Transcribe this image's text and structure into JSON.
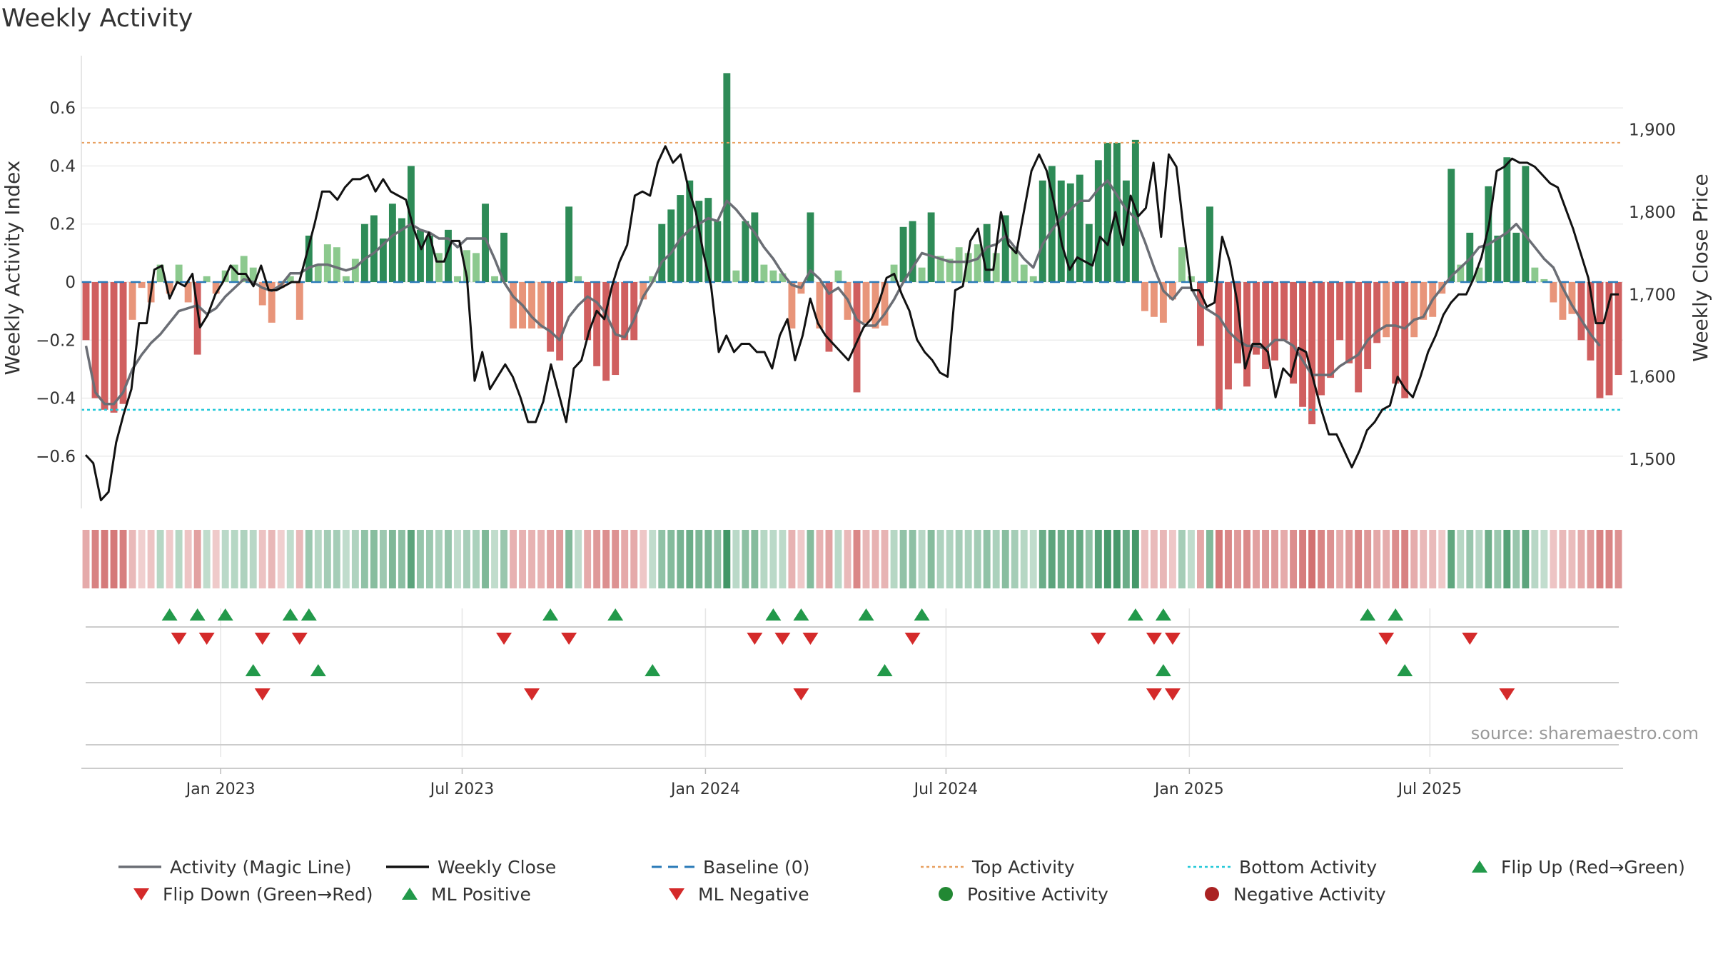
{
  "chart_data": {
    "type": "bar+line",
    "title": "Weekly Activity",
    "ylabel_left": "Weekly Activity Index",
    "ylabel_right": "Weekly Close Price",
    "ylim_left": [
      -0.78,
      0.78
    ],
    "ylim_right": [
      1440,
      1990
    ],
    "yticks_left": [
      -0.6,
      -0.4,
      -0.2,
      0,
      0.2,
      0.4,
      0.6
    ],
    "yticks_left_labels": [
      "−0.6",
      "−0.4",
      "−0.2",
      "0",
      "0.2",
      "0.4",
      "0.6"
    ],
    "yticks_right": [
      1500,
      1600,
      1700,
      1800,
      1900
    ],
    "yticks_right_labels": [
      "1,500",
      "1,600",
      "1,700",
      "1,800",
      "1,900"
    ],
    "x_start": "2022-09-26",
    "x_ticks": [
      {
        "label": "Jan 2023",
        "week": 14.5
      },
      {
        "label": "Jul 2023",
        "week": 40.5
      },
      {
        "label": "Jan 2024",
        "week": 66.7
      },
      {
        "label": "Jul 2024",
        "week": 92.6
      },
      {
        "label": "Jan 2025",
        "week": 118.8
      },
      {
        "label": "Jul 2025",
        "week": 144.7
      }
    ],
    "top_activity": 0.48,
    "bottom_activity": -0.44,
    "baseline": 0,
    "activity": [
      -0.2,
      -0.4,
      -0.44,
      -0.45,
      -0.42,
      -0.13,
      -0.02,
      -0.07,
      0.06,
      -0.04,
      0.06,
      -0.07,
      -0.25,
      0.02,
      -0.04,
      0.04,
      0.06,
      0.09,
      0.05,
      -0.08,
      -0.14,
      -0.02,
      0.02,
      -0.13,
      0.16,
      0.06,
      0.13,
      0.12,
      0.02,
      0.08,
      0.2,
      0.23,
      0.15,
      0.27,
      0.22,
      0.4,
      0.18,
      0.16,
      0.1,
      0.18,
      0.02,
      0.11,
      0.1,
      0.27,
      0.02,
      0.17,
      -0.16,
      -0.16,
      -0.16,
      -0.16,
      -0.24,
      -0.27,
      0.26,
      0.02,
      -0.2,
      -0.29,
      -0.34,
      -0.32,
      -0.2,
      -0.2,
      -0.06,
      0.02,
      0.2,
      0.25,
      0.3,
      0.35,
      0.28,
      0.29,
      0.21,
      0.72,
      0.04,
      0.21,
      0.24,
      0.06,
      0.04,
      0.03,
      -0.16,
      -0.04,
      0.24,
      -0.16,
      -0.24,
      0.04,
      -0.13,
      -0.38,
      -0.14,
      -0.16,
      -0.15,
      0.06,
      0.19,
      0.21,
      0.05,
      0.24,
      0.09,
      0.08,
      0.12,
      0.1,
      0.13,
      0.2,
      0.1,
      0.23,
      0.12,
      0.06,
      0.02,
      0.35,
      0.4,
      0.35,
      0.34,
      0.37,
      0.2,
      0.42,
      0.48,
      0.48,
      0.35,
      0.49,
      -0.1,
      -0.12,
      -0.14,
      -0.06,
      0.12,
      0.02,
      -0.22,
      0.26,
      -0.44,
      -0.37,
      -0.28,
      -0.36,
      -0.25,
      -0.3,
      -0.27,
      -0.2,
      -0.35,
      -0.43,
      -0.49,
      -0.39,
      -0.33,
      -0.2,
      -0.28,
      -0.38,
      -0.3,
      -0.21,
      -0.19,
      -0.35,
      -0.4,
      -0.19,
      -0.13,
      -0.12,
      -0.04,
      0.39,
      0.06,
      0.17,
      0.05,
      0.33,
      0.16,
      0.43,
      0.17,
      0.4,
      0.05,
      0.01,
      -0.07,
      -0.13,
      -0.11,
      -0.2,
      -0.27,
      -0.4,
      -0.39,
      -0.32
    ],
    "magic_line": [
      -0.22,
      -0.38,
      -0.42,
      -0.42,
      -0.38,
      -0.3,
      -0.25,
      -0.21,
      -0.18,
      -0.14,
      -0.1,
      -0.09,
      -0.08,
      -0.11,
      -0.09,
      -0.05,
      -0.02,
      0.01,
      0.0,
      -0.02,
      -0.03,
      -0.01,
      0.03,
      0.03,
      0.05,
      0.06,
      0.06,
      0.05,
      0.04,
      0.05,
      0.08,
      0.1,
      0.13,
      0.16,
      0.18,
      0.2,
      0.18,
      0.17,
      0.15,
      0.15,
      0.12,
      0.15,
      0.15,
      0.15,
      0.08,
      0.0,
      -0.05,
      -0.08,
      -0.12,
      -0.15,
      -0.17,
      -0.2,
      -0.12,
      -0.08,
      -0.05,
      -0.07,
      -0.11,
      -0.18,
      -0.19,
      -0.13,
      -0.05,
      0.0,
      0.07,
      0.1,
      0.15,
      0.18,
      0.2,
      0.22,
      0.21,
      0.28,
      0.25,
      0.21,
      0.17,
      0.12,
      0.08,
      0.03,
      -0.01,
      -0.02,
      0.04,
      0.01,
      -0.04,
      -0.02,
      -0.06,
      -0.13,
      -0.15,
      -0.15,
      -0.11,
      -0.06,
      0.0,
      0.05,
      0.1,
      0.09,
      0.08,
      0.07,
      0.07,
      0.07,
      0.08,
      0.12,
      0.13,
      0.16,
      0.12,
      0.08,
      0.05,
      0.13,
      0.18,
      0.22,
      0.25,
      0.28,
      0.28,
      0.32,
      0.35,
      0.3,
      0.25,
      0.22,
      0.14,
      0.05,
      -0.03,
      -0.06,
      -0.02,
      -0.02,
      -0.08,
      -0.1,
      -0.12,
      -0.17,
      -0.2,
      -0.22,
      -0.22,
      -0.23,
      -0.2,
      -0.2,
      -0.22,
      -0.27,
      -0.32,
      -0.32,
      -0.32,
      -0.29,
      -0.27,
      -0.25,
      -0.2,
      -0.17,
      -0.15,
      -0.15,
      -0.16,
      -0.13,
      -0.12,
      -0.06,
      -0.02,
      0.02,
      0.05,
      0.08,
      0.12,
      0.13,
      0.15,
      0.17,
      0.2,
      0.16,
      0.12,
      0.08,
      0.05,
      -0.02,
      -0.08,
      -0.13,
      -0.18,
      -0.22
    ],
    "weekly_close": [
      1505,
      1495,
      1450,
      1460,
      1520,
      1555,
      1585,
      1665,
      1665,
      1730,
      1735,
      1695,
      1715,
      1710,
      1725,
      1660,
      1675,
      1700,
      1715,
      1735,
      1725,
      1725,
      1710,
      1735,
      1705,
      1705,
      1710,
      1715,
      1715,
      1750,
      1785,
      1825,
      1825,
      1815,
      1830,
      1840,
      1840,
      1845,
      1825,
      1840,
      1825,
      1820,
      1815,
      1780,
      1755,
      1775,
      1740,
      1740,
      1765,
      1765,
      1720,
      1595,
      1630,
      1585,
      1600,
      1615,
      1600,
      1575,
      1545,
      1545,
      1570,
      1615,
      1580,
      1545,
      1610,
      1620,
      1655,
      1680,
      1670,
      1710,
      1740,
      1760,
      1820,
      1825,
      1820,
      1860,
      1880,
      1860,
      1870,
      1830,
      1800,
      1750,
      1710,
      1630,
      1650,
      1630,
      1640,
      1640,
      1630,
      1630,
      1610,
      1650,
      1670,
      1620,
      1650,
      1695,
      1665,
      1650,
      1640,
      1630,
      1620,
      1640,
      1660,
      1670,
      1690,
      1720,
      1725,
      1700,
      1680,
      1645,
      1630,
      1620,
      1605,
      1600,
      1705,
      1710,
      1765,
      1780,
      1730,
      1730,
      1800,
      1760,
      1750,
      1800,
      1850,
      1870,
      1850,
      1810,
      1760,
      1730,
      1745,
      1740,
      1735,
      1770,
      1760,
      1800,
      1760,
      1820,
      1795,
      1805,
      1860,
      1770,
      1870,
      1855,
      1775,
      1705,
      1705,
      1685,
      1690,
      1770,
      1740,
      1690,
      1610,
      1640,
      1640,
      1630,
      1575,
      1610,
      1600,
      1635,
      1630,
      1595,
      1560,
      1530,
      1530,
      1510,
      1490,
      1510,
      1535,
      1545,
      1560,
      1565,
      1600,
      1585,
      1575,
      1600,
      1630,
      1650,
      1675,
      1690,
      1700,
      1700,
      1720,
      1745,
      1785,
      1850,
      1855,
      1865,
      1860,
      1860,
      1855,
      1845,
      1835,
      1830,
      1805,
      1780,
      1750,
      1720,
      1665,
      1665,
      1700,
      1700
    ],
    "flip_up_weeks": [
      9,
      12,
      15,
      22,
      24,
      50,
      57,
      74,
      77,
      84,
      90,
      113,
      116,
      138,
      141
    ],
    "flip_down_weeks": [
      10,
      13,
      19,
      23,
      45,
      52,
      72,
      75,
      78,
      89,
      109,
      115,
      117,
      140,
      149
    ],
    "ml_positive_weeks": [
      18,
      25,
      61,
      86,
      116,
      142
    ],
    "ml_negative_weeks": [
      19,
      48,
      77,
      115,
      117,
      153
    ],
    "source": "source: sharemaestro.com",
    "legend": [
      {
        "label": "Activity (Magic Line)",
        "icon": "line-gray",
        "color": "#6b6e75"
      },
      {
        "label": "Weekly Close",
        "icon": "line-black",
        "color": "#111111"
      },
      {
        "label": "Baseline (0)",
        "icon": "dash-blue",
        "color": "#2a7ab8"
      },
      {
        "label": "Top Activity",
        "icon": "dot-orange",
        "color": "#e8a060"
      },
      {
        "label": "Bottom Activity",
        "icon": "dot-cyan",
        "color": "#22c8d8"
      },
      {
        "label": "Flip Up (Red→Green)",
        "icon": "triangle-up-green",
        "color": "#22994a"
      },
      {
        "label": "Flip Down (Green→Red)",
        "icon": "triangle-down-red",
        "color": "#d42a2a"
      },
      {
        "label": "ML Positive",
        "icon": "triangle-up-green",
        "color": "#22994a"
      },
      {
        "label": "ML Negative",
        "icon": "triangle-down-red",
        "color": "#d42a2a"
      },
      {
        "label": "Positive Activity",
        "icon": "circle-green",
        "color": "#228833"
      },
      {
        "label": "Negative Activity",
        "icon": "circle-darkred",
        "color": "#aa2222"
      }
    ]
  }
}
